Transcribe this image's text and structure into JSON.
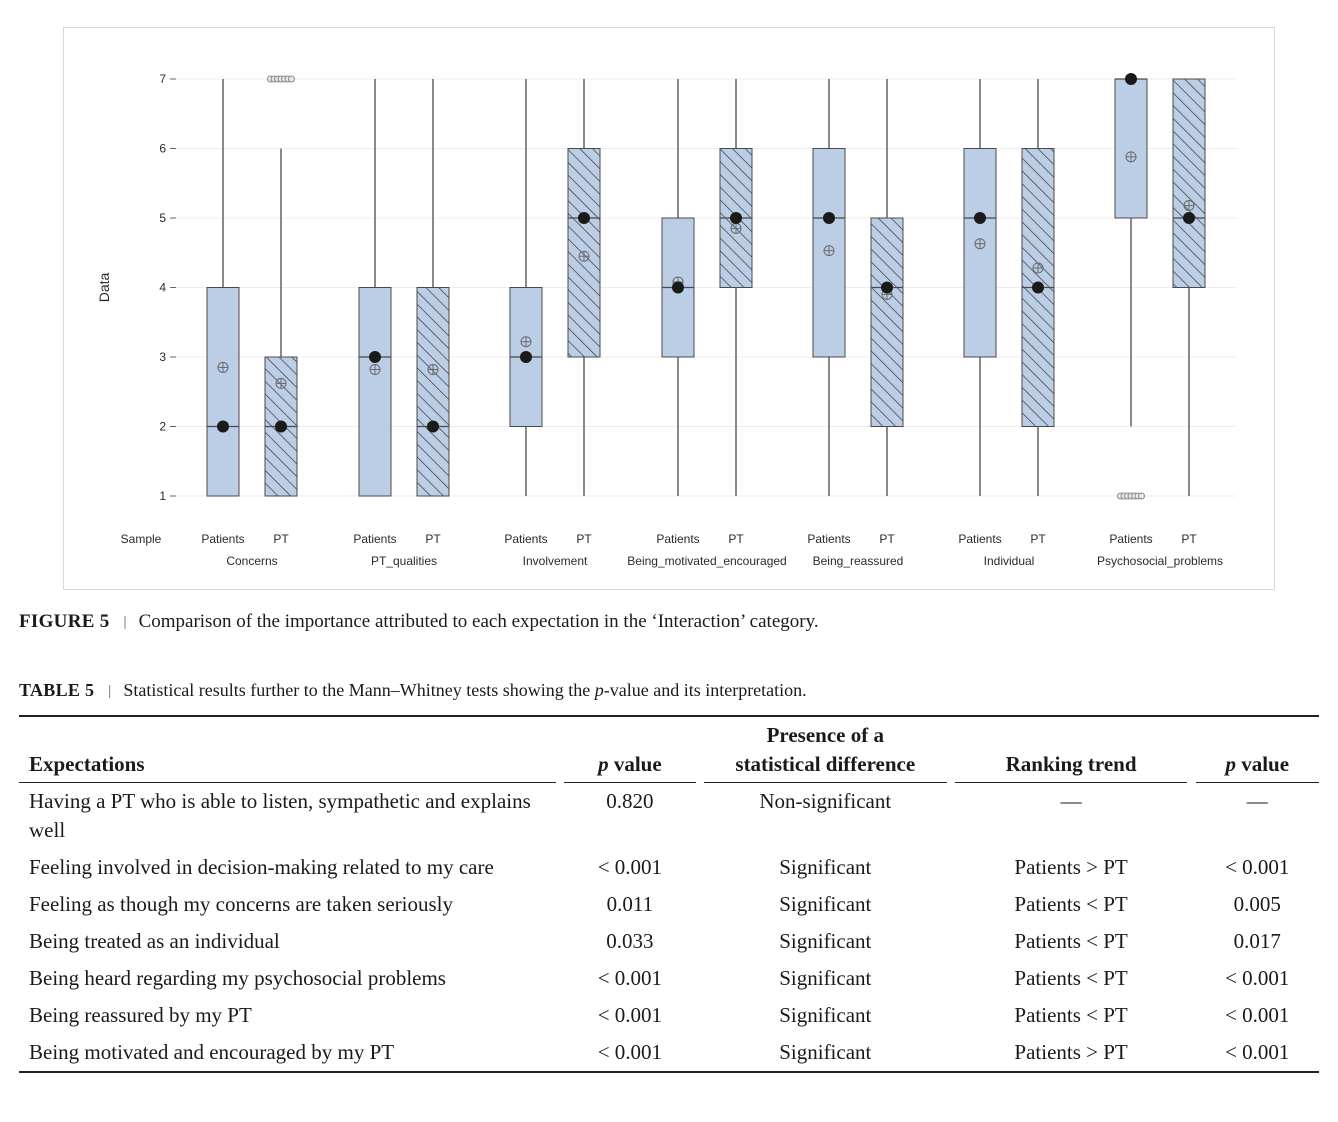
{
  "chart_data": {
    "type": "boxplot",
    "ylabel": "Data",
    "yticks": [
      1,
      2,
      3,
      4,
      5,
      6,
      7
    ],
    "ylim": [
      1,
      7
    ],
    "sample_label": "Sample",
    "group_levels": [
      "Patients",
      "PT"
    ],
    "groups": [
      {
        "name": "Concerns",
        "boxes": [
          {
            "sample": "Patients",
            "min": 1,
            "q1": 1,
            "median": 2,
            "q3": 4,
            "max": 7,
            "mean": 2.85,
            "outliers": []
          },
          {
            "sample": "PT",
            "min": 1,
            "q1": 1,
            "median": 2,
            "q3": 3,
            "max": 6,
            "mean": 2.62,
            "outliers": [
              7
            ]
          }
        ]
      },
      {
        "name": "PT_qualities",
        "boxes": [
          {
            "sample": "Patients",
            "min": 1,
            "q1": 1,
            "median": 3,
            "q3": 4,
            "max": 7,
            "mean": 2.82,
            "outliers": []
          },
          {
            "sample": "PT",
            "min": 1,
            "q1": 1,
            "median": 2,
            "q3": 4,
            "max": 7,
            "mean": 2.82,
            "outliers": []
          }
        ]
      },
      {
        "name": "Involvement",
        "boxes": [
          {
            "sample": "Patients",
            "min": 1,
            "q1": 2,
            "median": 3,
            "q3": 4,
            "max": 7,
            "mean": 3.22,
            "outliers": []
          },
          {
            "sample": "PT",
            "min": 1,
            "q1": 3,
            "median": 5,
            "q3": 6,
            "max": 7,
            "mean": 4.45,
            "outliers": []
          }
        ]
      },
      {
        "name": "Being_motivated_encouraged",
        "boxes": [
          {
            "sample": "Patients",
            "min": 1,
            "q1": 3,
            "median": 4,
            "q3": 5,
            "max": 7,
            "mean": 4.08,
            "outliers": []
          },
          {
            "sample": "PT",
            "min": 1,
            "q1": 4,
            "median": 5,
            "q3": 6,
            "max": 7,
            "mean": 4.85,
            "outliers": []
          }
        ]
      },
      {
        "name": "Being_reassured",
        "boxes": [
          {
            "sample": "Patients",
            "min": 1,
            "q1": 3,
            "median": 5,
            "q3": 6,
            "max": 7,
            "mean": 4.53,
            "outliers": []
          },
          {
            "sample": "PT",
            "min": 1,
            "q1": 2,
            "median": 4,
            "q3": 5,
            "max": 7,
            "mean": 3.9,
            "outliers": []
          }
        ]
      },
      {
        "name": "Individual",
        "boxes": [
          {
            "sample": "Patients",
            "min": 1,
            "q1": 3,
            "median": 5,
            "q3": 6,
            "max": 7,
            "mean": 4.63,
            "outliers": []
          },
          {
            "sample": "PT",
            "min": 1,
            "q1": 2,
            "median": 4,
            "q3": 6,
            "max": 7,
            "mean": 4.28,
            "outliers": []
          }
        ]
      },
      {
        "name": "Psychosocial_problems",
        "boxes": [
          {
            "sample": "Patients",
            "min": 2,
            "q1": 5,
            "median": 7,
            "q3": 7,
            "max": 7,
            "mean": 5.88,
            "outliers": [
              1
            ]
          },
          {
            "sample": "PT",
            "min": 1,
            "q1": 4,
            "median": 5,
            "q3": 7,
            "max": 7,
            "mean": 5.18,
            "outliers": []
          }
        ]
      }
    ],
    "colors": {
      "box_fill": "#bccde6",
      "box_stroke": "#4a4a4a",
      "whisker": "#8a8a8a",
      "median_dot": "#1a1a1a",
      "grid": "#ececec"
    },
    "grid": true,
    "pattern": {
      "Patients": "solid",
      "PT": "diagonal-hatch"
    }
  },
  "figure_caption": {
    "label": "FIGURE 5",
    "separator": "|",
    "text": "Comparison of the importance attributed to each expectation in the ‘Interaction’ category."
  },
  "table": {
    "caption_label": "TABLE 5",
    "caption_separator": "|",
    "caption_text_before": "Statistical results further to the Mann–Whitney tests showing the ",
    "caption_text_italic": "p",
    "caption_text_after": "-value and its interpretation.",
    "headers": {
      "expectations": "Expectations",
      "p_italic": "p",
      "p_rest": " value",
      "presence_line1": "Presence of a",
      "presence_line2": "statistical difference",
      "ranking": "Ranking trend",
      "p2_italic": "p",
      "p2_rest": " value"
    },
    "rows": [
      {
        "expectation": "Having a PT who is able to listen, sympathetic and explains well",
        "p": "0.820",
        "presence": "Non-significant",
        "ranking": "—",
        "p2": "—"
      },
      {
        "expectation": "Feeling involved in decision-making related to my care",
        "p": "< 0.001",
        "presence": "Significant",
        "ranking": "Patients > PT",
        "p2": "< 0.001"
      },
      {
        "expectation": "Feeling as though my concerns are taken seriously",
        "p": "0.011",
        "presence": "Significant",
        "ranking": "Patients < PT",
        "p2": "0.005"
      },
      {
        "expectation": "Being treated as an individual",
        "p": "0.033",
        "presence": "Significant",
        "ranking": "Patients < PT",
        "p2": "0.017"
      },
      {
        "expectation": "Being heard regarding my psychosocial problems",
        "p": "< 0.001",
        "presence": "Significant",
        "ranking": "Patients < PT",
        "p2": "< 0.001"
      },
      {
        "expectation": "Being reassured by my PT",
        "p": "< 0.001",
        "presence": "Significant",
        "ranking": "Patients < PT",
        "p2": "< 0.001"
      },
      {
        "expectation": "Being motivated and encouraged by my PT",
        "p": "< 0.001",
        "presence": "Significant",
        "ranking": "Patients > PT",
        "p2": "< 0.001"
      }
    ]
  }
}
